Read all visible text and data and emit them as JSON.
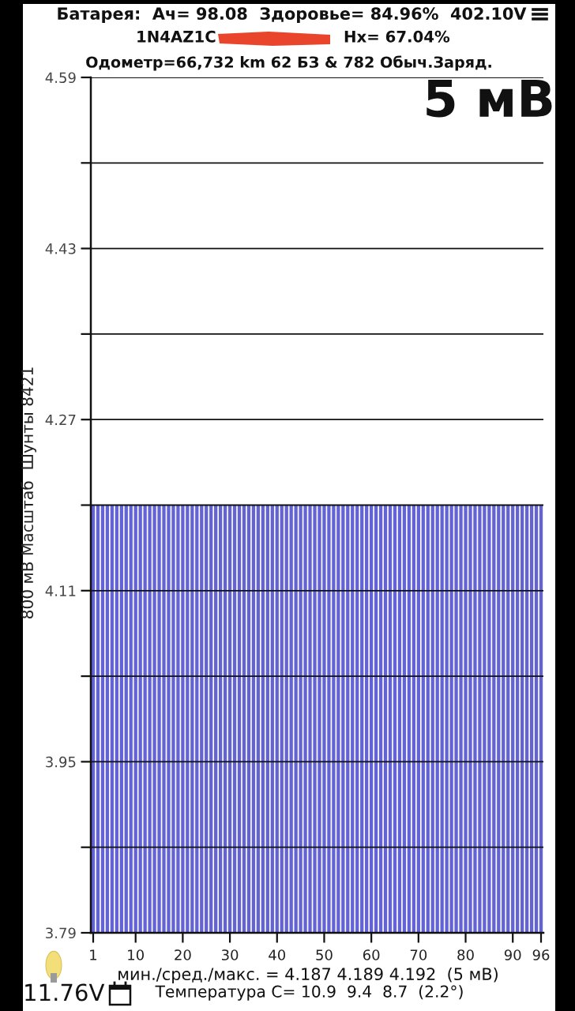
{
  "chart_data": {
    "type": "bar",
    "title": "Батарея:  Ач= 98.08  Здоровье= 84.96%  402.10V",
    "subtitle": "Одометр=66,732 km 62 БЗ & 782 Обыч.Заряд.",
    "ylabel": "800 мВ Масштаб  Шунты 8421",
    "annotations": [
      "1N4AZ1C",
      "Hx= 67.04%",
      "5 мВ",
      "мин./сред./макс. = 4.187 4.189 4.192  (5 мВ)",
      "11.76V",
      "Температура C= 10.9  9.4  8.7  (2.2°)"
    ],
    "x": [
      1,
      2,
      3,
      4,
      5,
      6,
      7,
      8,
      9,
      10,
      11,
      12,
      13,
      14,
      15,
      16,
      17,
      18,
      19,
      20,
      21,
      22,
      23,
      24,
      25,
      26,
      27,
      28,
      29,
      30,
      31,
      32,
      33,
      34,
      35,
      36,
      37,
      38,
      39,
      40,
      41,
      42,
      43,
      44,
      45,
      46,
      47,
      48,
      49,
      50,
      51,
      52,
      53,
      54,
      55,
      56,
      57,
      58,
      59,
      60,
      61,
      62,
      63,
      64,
      65,
      66,
      67,
      68,
      69,
      70,
      71,
      72,
      73,
      74,
      75,
      76,
      77,
      78,
      79,
      80,
      81,
      82,
      83,
      84,
      85,
      86,
      87,
      88,
      89,
      90,
      91,
      92,
      93,
      94,
      95,
      96
    ],
    "values": [
      4.19,
      4.19,
      4.19,
      4.19,
      4.19,
      4.19,
      4.19,
      4.19,
      4.19,
      4.19,
      4.19,
      4.19,
      4.19,
      4.19,
      4.19,
      4.19,
      4.19,
      4.19,
      4.19,
      4.19,
      4.19,
      4.19,
      4.19,
      4.19,
      4.19,
      4.19,
      4.19,
      4.19,
      4.19,
      4.19,
      4.19,
      4.19,
      4.19,
      4.19,
      4.19,
      4.19,
      4.19,
      4.19,
      4.19,
      4.19,
      4.19,
      4.19,
      4.19,
      4.19,
      4.19,
      4.19,
      4.19,
      4.19,
      4.19,
      4.19,
      4.19,
      4.19,
      4.19,
      4.19,
      4.19,
      4.19,
      4.19,
      4.19,
      4.19,
      4.19,
      4.19,
      4.19,
      4.19,
      4.19,
      4.19,
      4.19,
      4.19,
      4.19,
      4.19,
      4.19,
      4.19,
      4.19,
      4.19,
      4.19,
      4.19,
      4.19,
      4.19,
      4.19,
      4.19,
      4.19,
      4.19,
      4.19,
      4.19,
      4.19,
      4.19,
      4.19,
      4.19,
      4.19,
      4.19,
      4.19,
      4.19,
      4.19,
      4.19,
      4.19,
      4.19,
      4.19
    ],
    "color": "#6363d6",
    "xlim": [
      0.5,
      96.5
    ],
    "xticks": [
      1,
      10,
      20,
      30,
      40,
      50,
      60,
      70,
      80,
      90,
      96
    ],
    "ylim": [
      3.79,
      4.59
    ],
    "yticks": [
      3.79,
      {
        "value": 3.87,
        "label": null
      },
      3.95,
      {
        "value": 4.03,
        "label": null
      },
      4.11,
      {
        "value": 4.19,
        "label": null
      },
      4.27,
      {
        "value": 4.35,
        "label": null
      },
      4.43,
      {
        "value": 4.51,
        "label": null
      },
      4.59
    ],
    "grid": "y"
  }
}
